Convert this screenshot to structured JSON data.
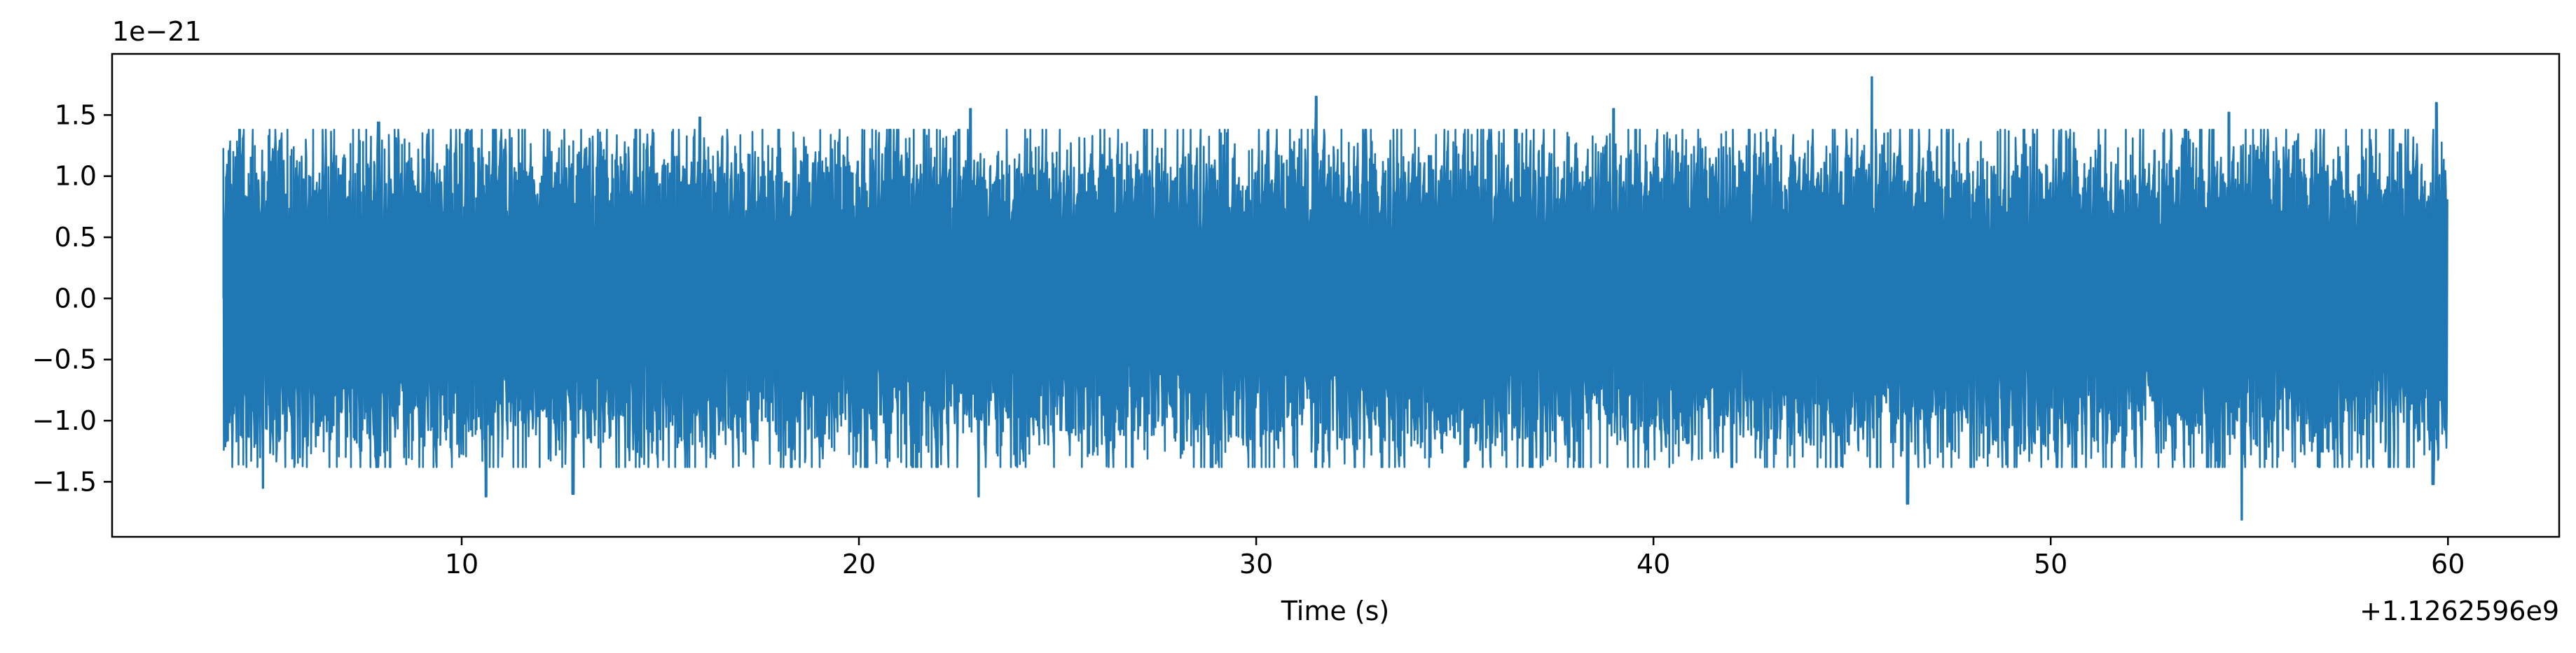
{
  "chart_data": {
    "type": "line",
    "title": "",
    "xlabel": "Time (s)",
    "ylabel": "",
    "x_offset_label": "+1.1262596e9",
    "y_scale_label": "1e−21",
    "xlim": [
      1.2,
      62.8
    ],
    "ylim": [
      -1.95,
      2.0
    ],
    "x_range": [
      4,
      60
    ],
    "amplitude_sigma": 0.36,
    "amplitude_max": 1.81,
    "amplitude_min": -1.81,
    "xticks": [
      10,
      20,
      30,
      40,
      50,
      60
    ],
    "xtick_labels": [
      "10",
      "20",
      "30",
      "40",
      "50",
      "60"
    ],
    "yticks": [
      -1.5,
      -1.0,
      -0.5,
      0.0,
      0.5,
      1.0,
      1.5
    ],
    "ytick_labels": [
      "−1.5",
      "−1.0",
      "−0.5",
      "0.0",
      "0.5",
      "1.0",
      "1.5"
    ],
    "series": [
      {
        "name": "strain",
        "color": "#1f77b4",
        "peaks": [
          {
            "x": 7.9,
            "y": 1.44
          },
          {
            "x": 16.0,
            "y": 1.48
          },
          {
            "x": 22.8,
            "y": 1.55
          },
          {
            "x": 31.5,
            "y": 1.65
          },
          {
            "x": 39.0,
            "y": 1.55
          },
          {
            "x": 45.5,
            "y": 1.81
          },
          {
            "x": 54.5,
            "y": 1.52
          },
          {
            "x": 59.7,
            "y": 1.6
          }
        ],
        "troughs": [
          {
            "x": 5.0,
            "y": -1.55
          },
          {
            "x": 10.6,
            "y": -1.62
          },
          {
            "x": 12.8,
            "y": -1.6
          },
          {
            "x": 23.0,
            "y": -1.62
          },
          {
            "x": 46.4,
            "y": -1.68
          },
          {
            "x": 54.8,
            "y": -1.81
          },
          {
            "x": 59.6,
            "y": -1.52
          }
        ]
      }
    ]
  }
}
